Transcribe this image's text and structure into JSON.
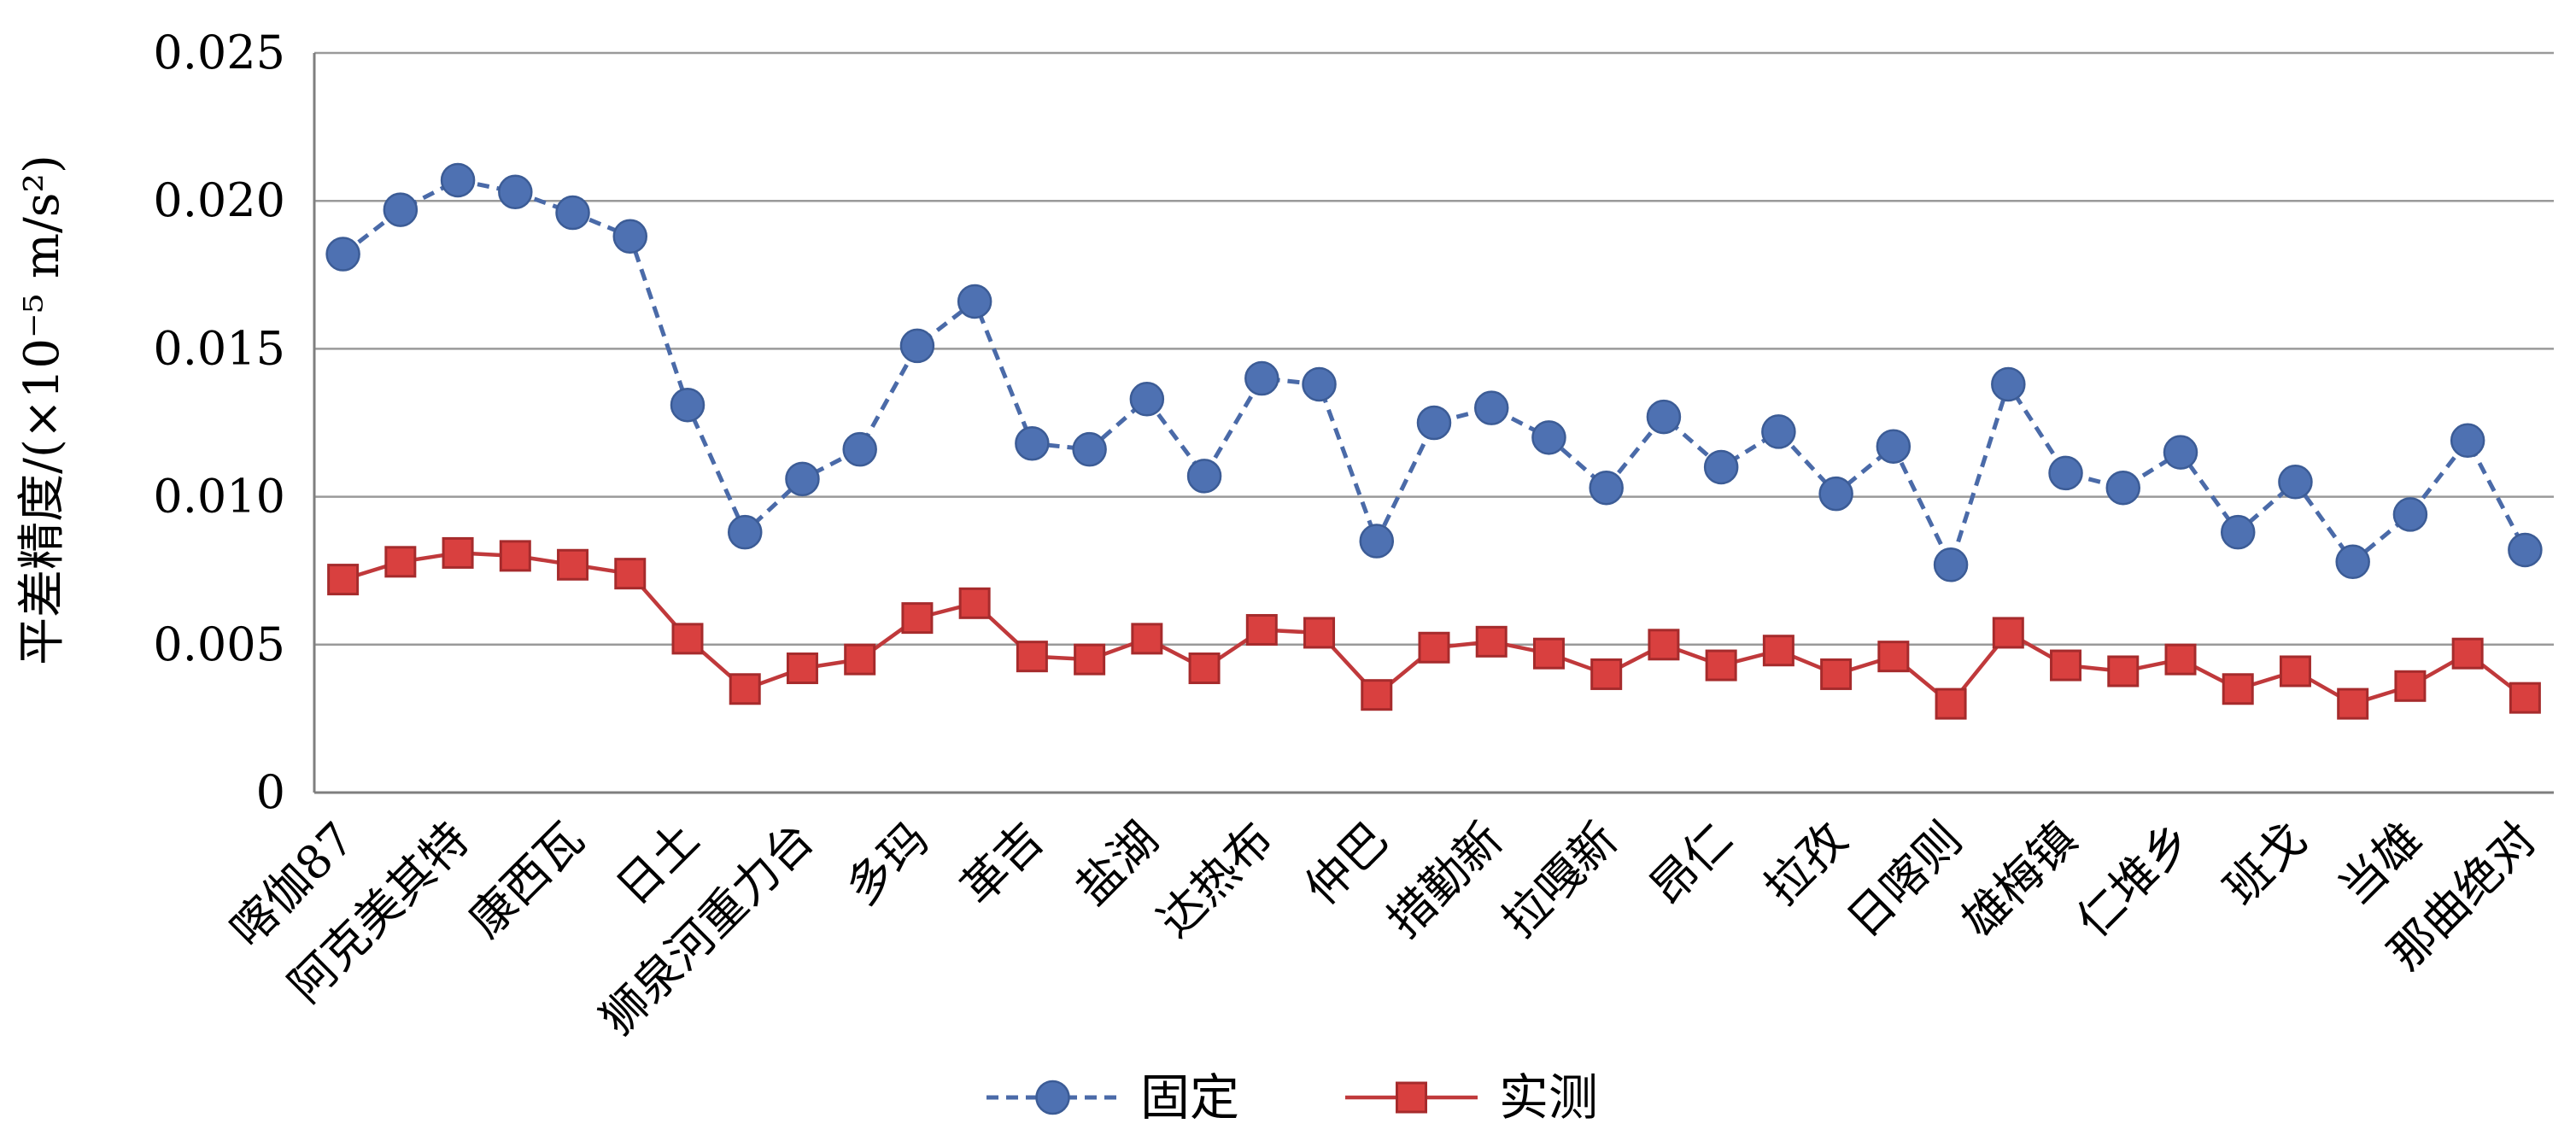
{
  "chart_data": {
    "type": "line",
    "title": "",
    "xlabel": "",
    "ylabel": "平差精度/(×10⁻⁵ m/s²)",
    "ylim": [
      0,
      0.025
    ],
    "yticks": [
      "0",
      "0.005",
      "0.010",
      "0.015",
      "0.020",
      "0.025"
    ],
    "grid": true,
    "legend_position": "bottom-center",
    "categories": [
      "喀伽87",
      "",
      "阿克美其特",
      "",
      "康西瓦",
      "",
      "日土",
      "",
      "狮泉河重力台",
      "",
      "多玛",
      "",
      "革吉",
      "",
      "盐湖",
      "",
      "达热布",
      "",
      "仲巴",
      "",
      "措勤新",
      "",
      "拉嘎新",
      "",
      "昂仁",
      "",
      "拉孜",
      "",
      "日喀则",
      "",
      "雄梅镇",
      "",
      "仁堆乡",
      "",
      "班戈",
      "",
      "当雄",
      "",
      "那曲绝对"
    ],
    "series": [
      {
        "name": "固定",
        "color": "#4A6AA8",
        "values": [
          0.0182,
          0.0197,
          0.0207,
          0.0203,
          0.0196,
          0.0188,
          0.0131,
          0.0088,
          0.0106,
          0.0116,
          0.0151,
          0.0166,
          0.0118,
          0.0116,
          0.0133,
          0.0107,
          0.014,
          0.0138,
          0.0085,
          0.0125,
          0.013,
          0.012,
          0.0103,
          0.0127,
          0.011,
          0.0122,
          0.0101,
          0.0117,
          0.0077,
          0.0138,
          0.0108,
          0.0103,
          0.0115,
          0.0088,
          0.0105,
          0.0078,
          0.0094,
          0.0119,
          0.0082
        ]
      },
      {
        "name": "实测",
        "color": "#C0393B",
        "values": [
          0.0072,
          0.0078,
          0.0081,
          0.008,
          0.0077,
          0.0074,
          0.0052,
          0.0035,
          0.0042,
          0.0045,
          0.0059,
          0.0064,
          0.0046,
          0.0045,
          0.0052,
          0.0042,
          0.0055,
          0.0054,
          0.0033,
          0.0049,
          0.0051,
          0.0047,
          0.004,
          0.005,
          0.0043,
          0.0048,
          0.004,
          0.0046,
          0.003,
          0.0054,
          0.0043,
          0.0041,
          0.0045,
          0.0035,
          0.0041,
          0.003,
          0.0036,
          0.0047,
          0.0032
        ]
      }
    ]
  }
}
